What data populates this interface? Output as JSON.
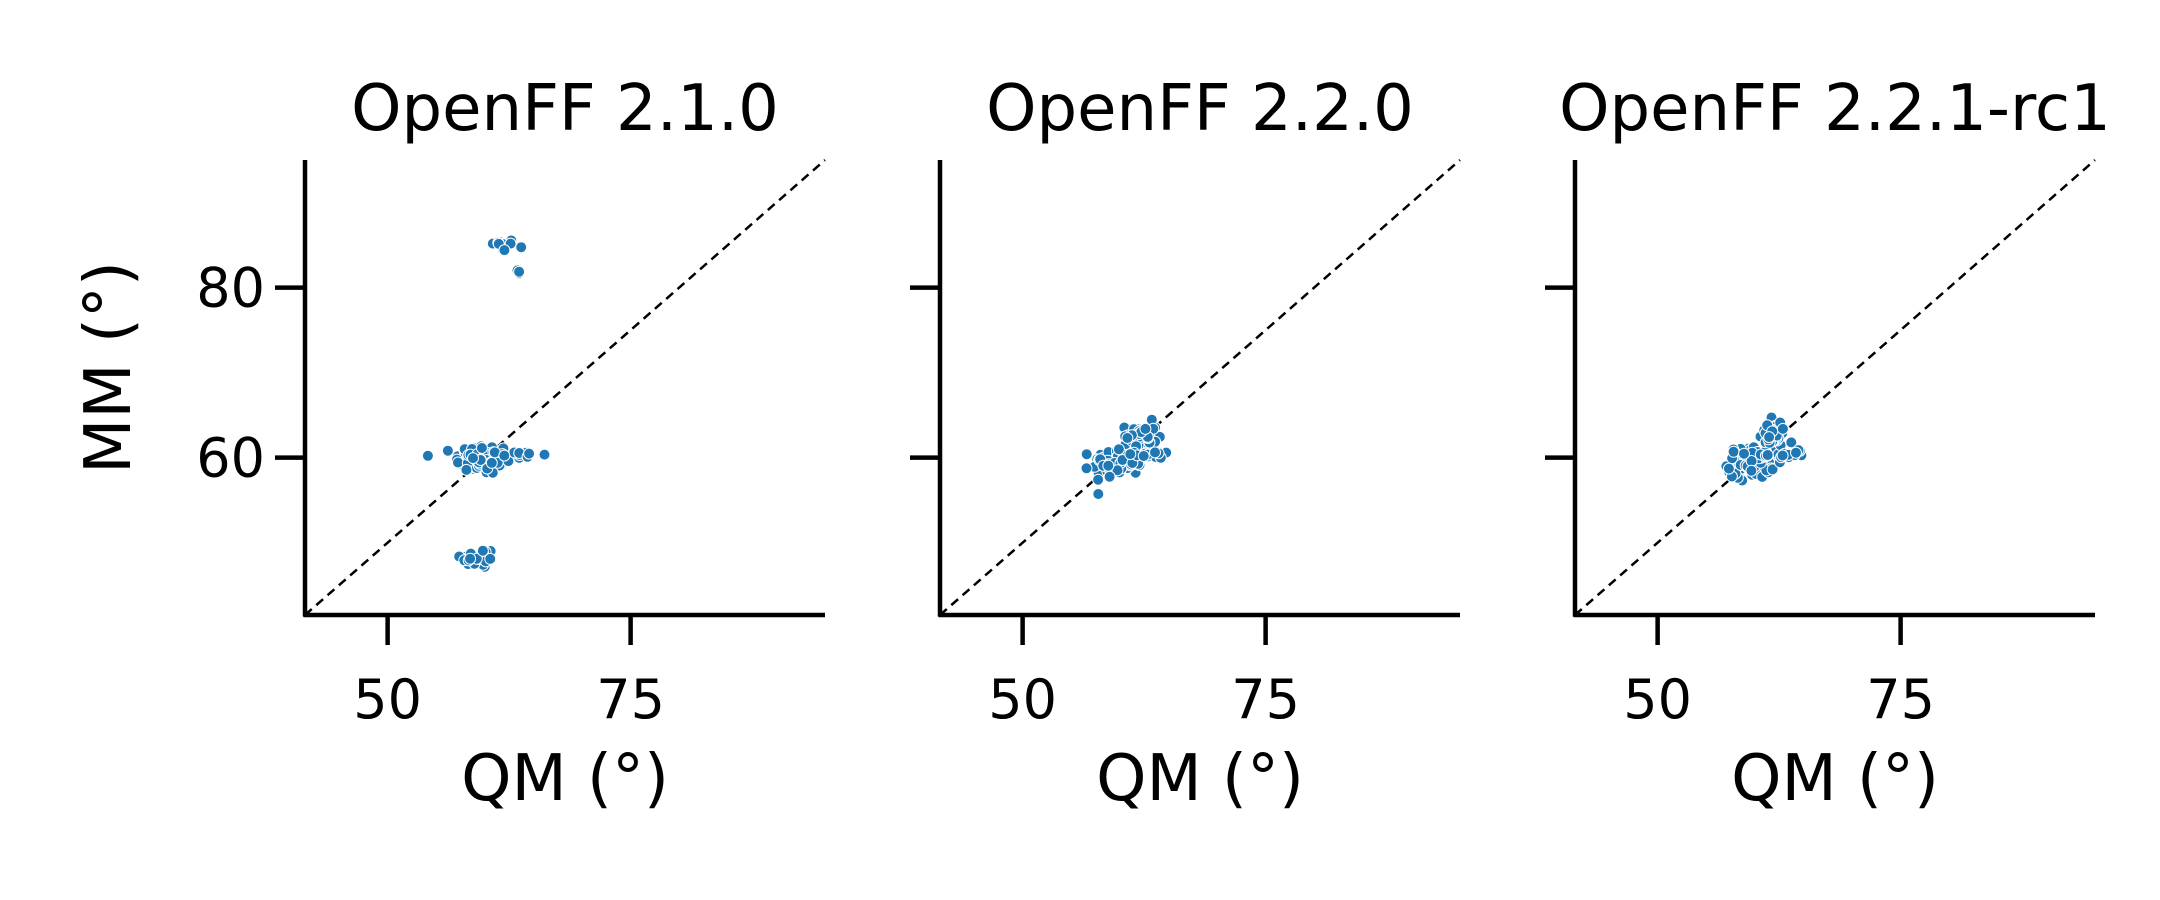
{
  "chart_data": [
    {
      "type": "scatter",
      "title": "OpenFF 2.1.0",
      "xlabel": "QM (°)",
      "ylabel": "MM (°)",
      "xlim": [
        41.5,
        95
      ],
      "ylim": [
        41.5,
        95
      ],
      "xticks": [
        50,
        75
      ],
      "yticks": [
        60,
        80
      ],
      "show_yticklabels": true,
      "reference_line": "y = x",
      "grid": false,
      "color": "#1f77b4",
      "clusters": [
        {
          "cx": 61.8,
          "cy": 85.0,
          "sx": 0.7,
          "sy": 0.35,
          "n": 18
        },
        {
          "cx": 63.4,
          "cy": 81.8,
          "sx": 0.15,
          "sy": 0.25,
          "n": 4
        },
        {
          "cx": 59.8,
          "cy": 59.8,
          "sx": 1.4,
          "sy": 0.9,
          "n": 90
        },
        {
          "cx": 63.6,
          "cy": 60.3,
          "sx": 1.1,
          "sy": 0.4,
          "n": 14
        },
        {
          "cx": 59.3,
          "cy": 48.2,
          "sx": 0.9,
          "sy": 0.6,
          "n": 36
        }
      ]
    },
    {
      "type": "scatter",
      "title": "OpenFF 2.2.0",
      "xlabel": "QM (°)",
      "ylabel": "",
      "xlim": [
        41.5,
        95
      ],
      "ylim": [
        41.5,
        95
      ],
      "xticks": [
        50,
        75
      ],
      "yticks": [
        60,
        80
      ],
      "show_yticklabels": false,
      "reference_line": "y = x",
      "grid": false,
      "color": "#1f77b4",
      "clusters": [
        {
          "cx": 59.8,
          "cy": 59.5,
          "sx": 1.3,
          "sy": 0.9,
          "n": 80
        },
        {
          "cx": 62.2,
          "cy": 62.6,
          "sx": 0.8,
          "sy": 0.8,
          "n": 40
        },
        {
          "cx": 63.6,
          "cy": 60.4,
          "sx": 1.0,
          "sy": 0.4,
          "n": 14
        }
      ]
    },
    {
      "type": "scatter",
      "title": "OpenFF 2.2.1-rc1",
      "xlabel": "QM (°)",
      "ylabel": "",
      "xlim": [
        41.5,
        95
      ],
      "ylim": [
        41.5,
        95
      ],
      "xticks": [
        50,
        75
      ],
      "yticks": [
        60,
        80
      ],
      "show_yticklabels": false,
      "reference_line": "y = x",
      "grid": false,
      "color": "#1f77b4",
      "clusters": [
        {
          "cx": 59.6,
          "cy": 59.4,
          "sx": 1.2,
          "sy": 0.9,
          "n": 80
        },
        {
          "cx": 61.8,
          "cy": 62.7,
          "sx": 0.7,
          "sy": 0.8,
          "n": 40
        },
        {
          "cx": 63.4,
          "cy": 60.4,
          "sx": 1.0,
          "sy": 0.4,
          "n": 14
        }
      ]
    }
  ]
}
